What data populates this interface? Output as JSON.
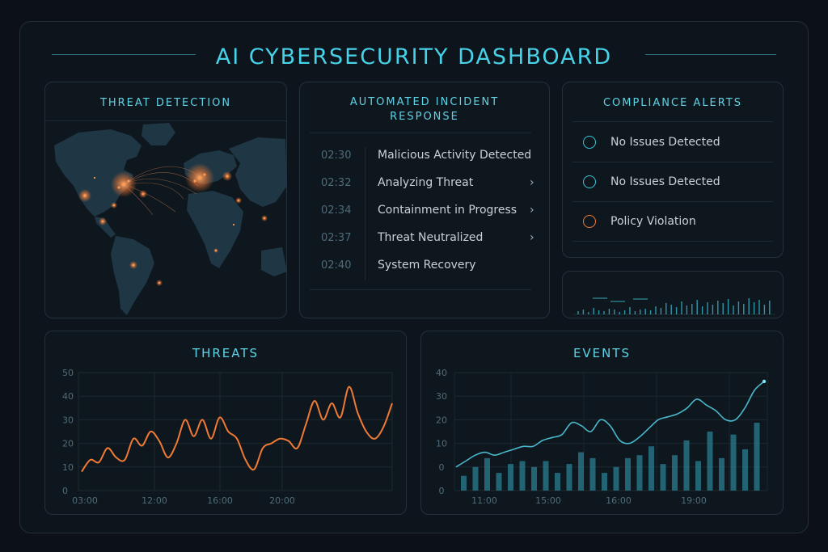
{
  "header": {
    "title": "AI CYBERSECURITY DASHBOARD"
  },
  "threat_detection": {
    "title": "THREAT DETECTION"
  },
  "incident_response": {
    "title": "AUTOMATED INCIDENT RESPONSE",
    "items": [
      {
        "time": "02:30",
        "label": "Malicious Activity Detected",
        "chevron": ""
      },
      {
        "time": "02:32",
        "label": "Analyzing Threat",
        "chevron": "›"
      },
      {
        "time": "02:34",
        "label": "Containment in Progress",
        "chevron": "›"
      },
      {
        "time": "02:37",
        "label": "Threat Neutralized",
        "chevron": "›"
      },
      {
        "time": "02:40",
        "label": "System Recovery",
        "chevron": ""
      }
    ]
  },
  "compliance": {
    "title": "COMPLIANCE ALERTS",
    "items": [
      {
        "label": "No Issues Detected",
        "status": "ok"
      },
      {
        "label": "No Issues Detected",
        "status": "ok"
      },
      {
        "label": "Policy Violation",
        "status": "warn"
      }
    ]
  },
  "colors": {
    "accent": "#46d2e8",
    "orange": "#f07a35",
    "teal": "#3aa6b8"
  },
  "chart_data": [
    {
      "type": "line",
      "title": "THREATS",
      "ylim": [
        0,
        50
      ],
      "yticks": [
        "50",
        "40",
        "30",
        "20",
        "10",
        "0"
      ],
      "xticks": [
        "03:00",
        "12:00",
        "16:00",
        "20:00"
      ],
      "series": [
        {
          "values": [
            8,
            13,
            12,
            18,
            14,
            13,
            22,
            19,
            25,
            21,
            14,
            20,
            30,
            23,
            30,
            22,
            31,
            25,
            22,
            13,
            9,
            18,
            20,
            22,
            21,
            18,
            28,
            38,
            30,
            37,
            31,
            44,
            33,
            25,
            22,
            27,
            37
          ]
        }
      ]
    },
    {
      "type": "bar",
      "title": "EVENTS",
      "ylim": [
        0,
        40
      ],
      "yticks": [
        "40",
        "30",
        "20",
        "10",
        "0",
        "0"
      ],
      "xticks": [
        "11:00",
        "15:00",
        "16:00",
        "19:00"
      ],
      "line": [
        8,
        10,
        12,
        13,
        12,
        13,
        14,
        15,
        15,
        17,
        18,
        19,
        23,
        22,
        20,
        24,
        22,
        17,
        16,
        18,
        21,
        24,
        25,
        26,
        28,
        31,
        29,
        27,
        24,
        24,
        28,
        34,
        37
      ],
      "bars": [
        5,
        8,
        11,
        6,
        9,
        10,
        8,
        10,
        6,
        9,
        13,
        11,
        6,
        8,
        11,
        12,
        15,
        9,
        12,
        17,
        10,
        20,
        11,
        19,
        14,
        23
      ]
    }
  ]
}
